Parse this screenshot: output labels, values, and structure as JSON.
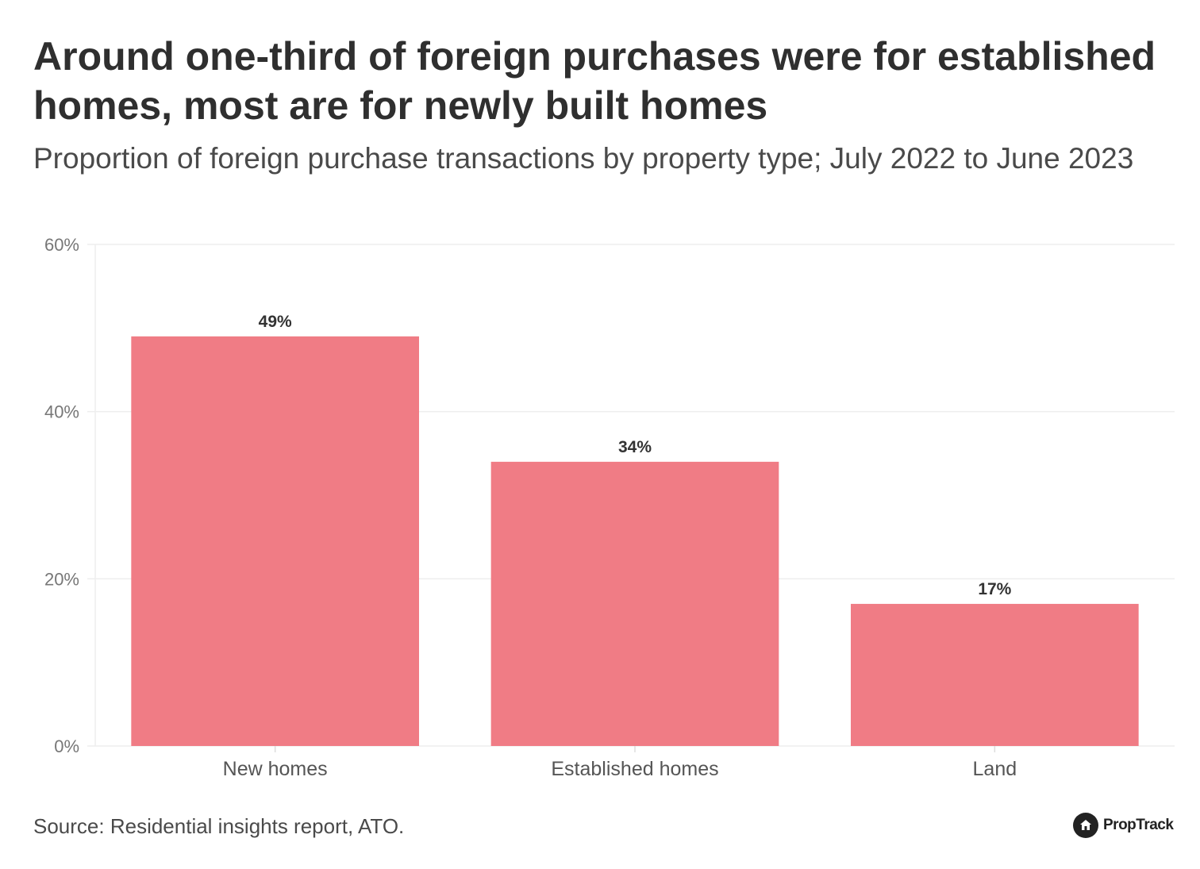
{
  "header": {
    "title": "Around one-third of foreign purchases were for established homes, most are for newly built homes",
    "subtitle": "Proportion of foreign purchase transactions by property type; July 2022 to June 2023"
  },
  "footer": {
    "source": "Source: Residential insights report, ATO.",
    "brand": "PropTrack"
  },
  "colors": {
    "bar": "#f07c85",
    "grid": "#eeeeee",
    "axis_text": "#777777",
    "label_text": "#333333"
  },
  "chart_data": {
    "type": "bar",
    "title": "Around one-third of foreign purchases were for established homes, most are for newly built homes",
    "subtitle": "Proportion of foreign purchase transactions by property type; July 2022 to June 2023",
    "categories": [
      "New homes",
      "Established homes",
      "Land"
    ],
    "values": [
      49,
      34,
      17
    ],
    "data_labels": [
      "49%",
      "34%",
      "17%"
    ],
    "xlabel": "",
    "ylabel": "",
    "ylim": [
      0,
      60
    ],
    "yticks": [
      0,
      20,
      40,
      60
    ],
    "ytick_labels": [
      "0%",
      "20%",
      "40%",
      "60%"
    ],
    "grid": true,
    "legend": "none"
  }
}
